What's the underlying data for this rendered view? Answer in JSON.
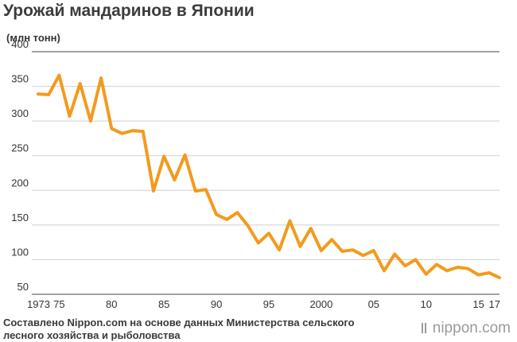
{
  "chart_data": {
    "type": "line",
    "title": "Урожай мандаринов в Японии",
    "ylabel": "(млн тонн)",
    "xlabel": "",
    "ylim": [
      50,
      400
    ],
    "yticks": [
      50,
      100,
      150,
      200,
      250,
      300,
      350,
      400
    ],
    "xlim": [
      1973,
      2017
    ],
    "xticks": [
      {
        "x": 1973,
        "label": "1973"
      },
      {
        "x": 1975,
        "label": "75"
      },
      {
        "x": 1980,
        "label": "80"
      },
      {
        "x": 1985,
        "label": "85"
      },
      {
        "x": 1990,
        "label": "90"
      },
      {
        "x": 1995,
        "label": "95"
      },
      {
        "x": 2000,
        "label": "2000"
      },
      {
        "x": 2005,
        "label": "05"
      },
      {
        "x": 2010,
        "label": "10"
      },
      {
        "x": 2015,
        "label": "15"
      },
      {
        "x": 2017,
        "label": "17"
      }
    ],
    "grid": true,
    "color": "#F39A1E",
    "x": [
      1973,
      1974,
      1975,
      1976,
      1977,
      1978,
      1979,
      1980,
      1981,
      1982,
      1983,
      1984,
      1985,
      1986,
      1987,
      1988,
      1989,
      1990,
      1991,
      1992,
      1993,
      1994,
      1995,
      1996,
      1997,
      1998,
      1999,
      2000,
      2001,
      2002,
      2003,
      2004,
      2005,
      2006,
      2007,
      2008,
      2009,
      2010,
      2011,
      2012,
      2013,
      2014,
      2015,
      2016,
      2017
    ],
    "values": [
      339,
      338,
      366,
      307,
      354,
      300,
      362,
      289,
      282,
      286,
      285,
      199,
      249,
      215,
      251,
      199,
      201,
      165,
      158,
      168,
      149,
      124,
      138,
      114,
      156,
      119,
      145,
      113,
      129,
      112,
      114,
      106,
      113,
      84,
      108,
      91,
      100,
      79,
      93,
      84,
      89,
      87,
      78,
      81,
      74
    ]
  },
  "source": {
    "line1": "Составлено Nippon.com на основе данных Министерства сельского",
    "line2": "лесного хозяйства и рыболовства"
  },
  "brand": {
    "text": "nippon.com",
    "color": "#9A9A9A"
  }
}
